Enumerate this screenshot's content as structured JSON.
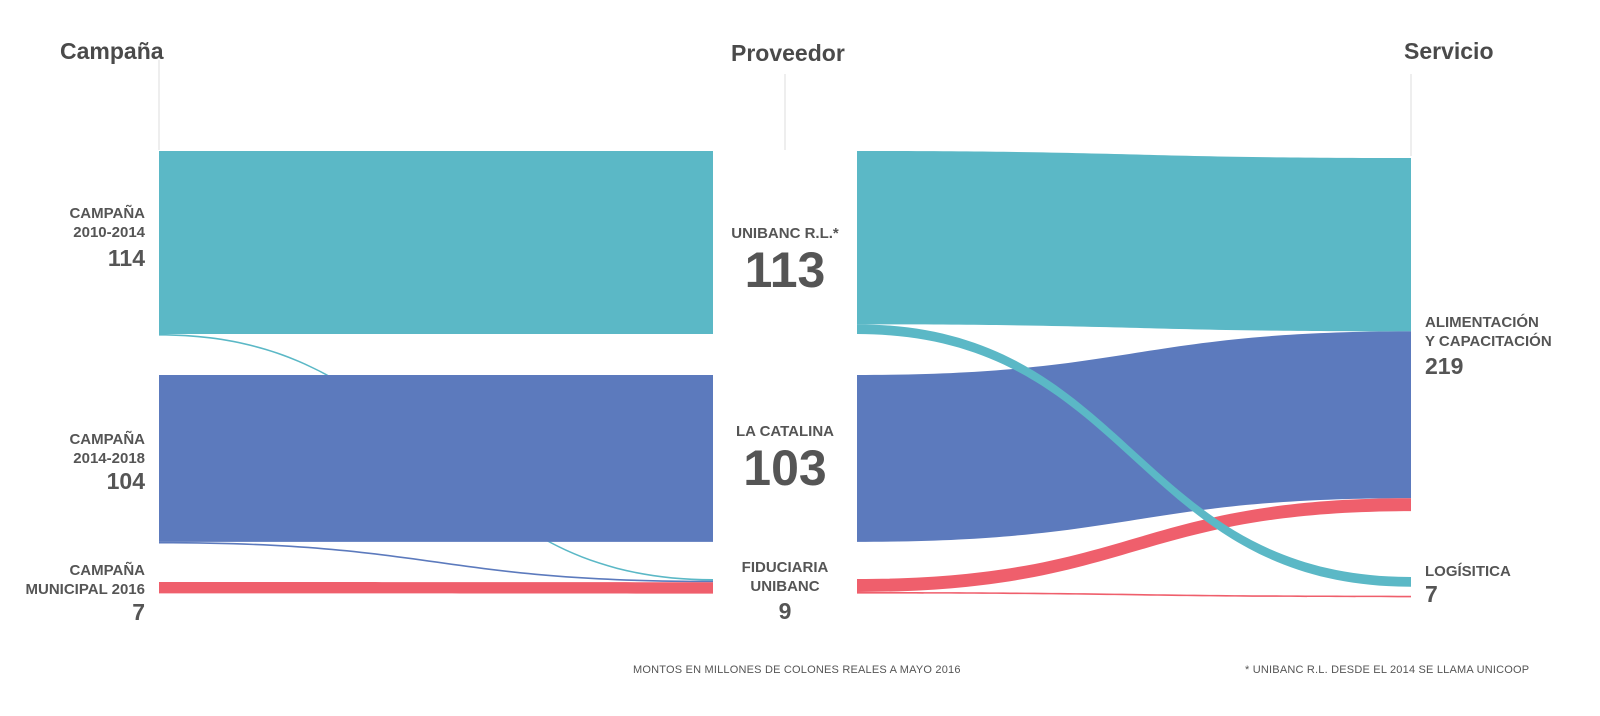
{
  "headers": {
    "campaign": "Campaña",
    "provider": "Proveedor",
    "service": "Servicio"
  },
  "campaigns": [
    {
      "label_line1": "CAMPAÑA",
      "label_line2": "2010-2014",
      "value": "114"
    },
    {
      "label_line1": "CAMPAÑA",
      "label_line2": "2014-2018",
      "value": "104"
    },
    {
      "label_line1": "CAMPAÑA",
      "label_line2": "MUNICIPAL 2016",
      "value": "7"
    }
  ],
  "providers": [
    {
      "label_line1": "UNIBANC R.L.*",
      "label_line2": "",
      "value": "113"
    },
    {
      "label_line1": "LA CATALINA",
      "label_line2": "",
      "value": "103"
    },
    {
      "label_line1": "FIDUCIARIA",
      "label_line2": "UNIBANC",
      "value": "9"
    }
  ],
  "services": [
    {
      "label_line1": "ALIMENTACIÓN",
      "label_line2": "Y CAPACITACIÓN",
      "value": "219"
    },
    {
      "label_line1": "LOGÍSITICA",
      "label_line2": "",
      "value": "7"
    }
  ],
  "footnotes": {
    "units": "MONTOS EN MILLONES DE COLONES REALES A MAYO 2016",
    "note": "* UNIBANC R.L. DESDE EL 2014 SE LLAMA UNICOOP"
  },
  "colors": {
    "teal": "#5bb8c6",
    "blue": "#5c7abd",
    "red": "#ef5f6c",
    "guide": "#dddddd"
  },
  "chart_data": {
    "type": "sankey",
    "nodes": [
      "CAMPAÑA 2010-2014",
      "CAMPAÑA 2014-2018",
      "CAMPAÑA MUNICIPAL 2016",
      "UNIBANC R.L.*",
      "LA CATALINA",
      "FIDUCIARIA UNIBANC",
      "ALIMENTACIÓN Y CAPACITACIÓN",
      "LOGÍSITICA"
    ],
    "links": [
      {
        "source": "CAMPAÑA 2010-2014",
        "target": "UNIBANC R.L.*",
        "value": 113,
        "color": "teal"
      },
      {
        "source": "CAMPAÑA 2010-2014",
        "target": "FIDUCIARIA UNIBANC",
        "value": 1,
        "color": "teal"
      },
      {
        "source": "CAMPAÑA 2014-2018",
        "target": "LA CATALINA",
        "value": 103,
        "color": "blue"
      },
      {
        "source": "CAMPAÑA 2014-2018",
        "target": "FIDUCIARIA UNIBANC",
        "value": 1,
        "color": "blue"
      },
      {
        "source": "CAMPAÑA MUNICIPAL 2016",
        "target": "FIDUCIARIA UNIBANC",
        "value": 7,
        "color": "red"
      },
      {
        "source": "UNIBANC R.L.*",
        "target": "ALIMENTACIÓN Y CAPACITACIÓN",
        "value": 107,
        "color": "teal"
      },
      {
        "source": "UNIBANC R.L.*",
        "target": "LOGÍSITICA",
        "value": 6,
        "color": "teal"
      },
      {
        "source": "LA CATALINA",
        "target": "ALIMENTACIÓN Y CAPACITACIÓN",
        "value": 103,
        "color": "blue"
      },
      {
        "source": "FIDUCIARIA UNIBANC",
        "target": "ALIMENTACIÓN Y CAPACITACIÓN",
        "value": 8,
        "color": "red"
      },
      {
        "source": "FIDUCIARIA UNIBANC",
        "target": "LOGÍSITICA",
        "value": 1,
        "color": "red"
      }
    ]
  }
}
